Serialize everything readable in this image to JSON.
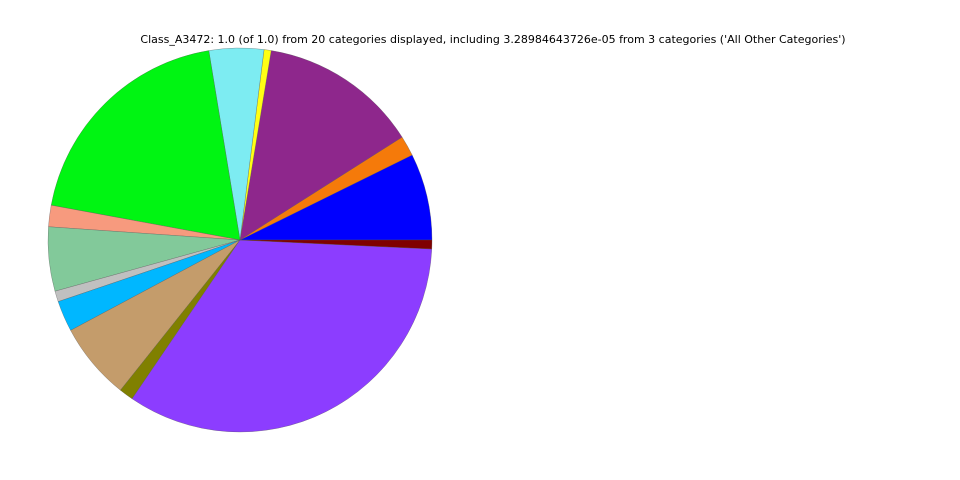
{
  "chart_data": {
    "type": "pie",
    "title": "Class_A3472: 1.0 (of 1.0) from 20 categories displayed, including 3.28984643726e-05 from 3 categories ('All Other Categories')",
    "start_angle_deg": 0,
    "direction": "counterclockwise",
    "slices": [
      {
        "value": 0.073,
        "color": "#0000ff"
      },
      {
        "value": 0.017,
        "color": "#f57a0a"
      },
      {
        "value": 0.134,
        "color": "#8e278c"
      },
      {
        "value": 0.006,
        "color": "#ffff14"
      },
      {
        "value": 0.046,
        "color": "#7decf2"
      },
      {
        "value": 0.195,
        "color": "#00f512"
      },
      {
        "value": 0.018,
        "color": "#f79a7e"
      },
      {
        "value": 0.054,
        "color": "#82c99a"
      },
      {
        "value": 0.009,
        "color": "#c0c0c0"
      },
      {
        "value": 0.026,
        "color": "#00b7ff"
      },
      {
        "value": 0.065,
        "color": "#c49c6b"
      },
      {
        "value": 0.012,
        "color": "#808000"
      },
      {
        "value": 0.3375,
        "color": "#8c3dff"
      },
      {
        "value": 0.0075,
        "color": "#7f0000"
      }
    ]
  }
}
